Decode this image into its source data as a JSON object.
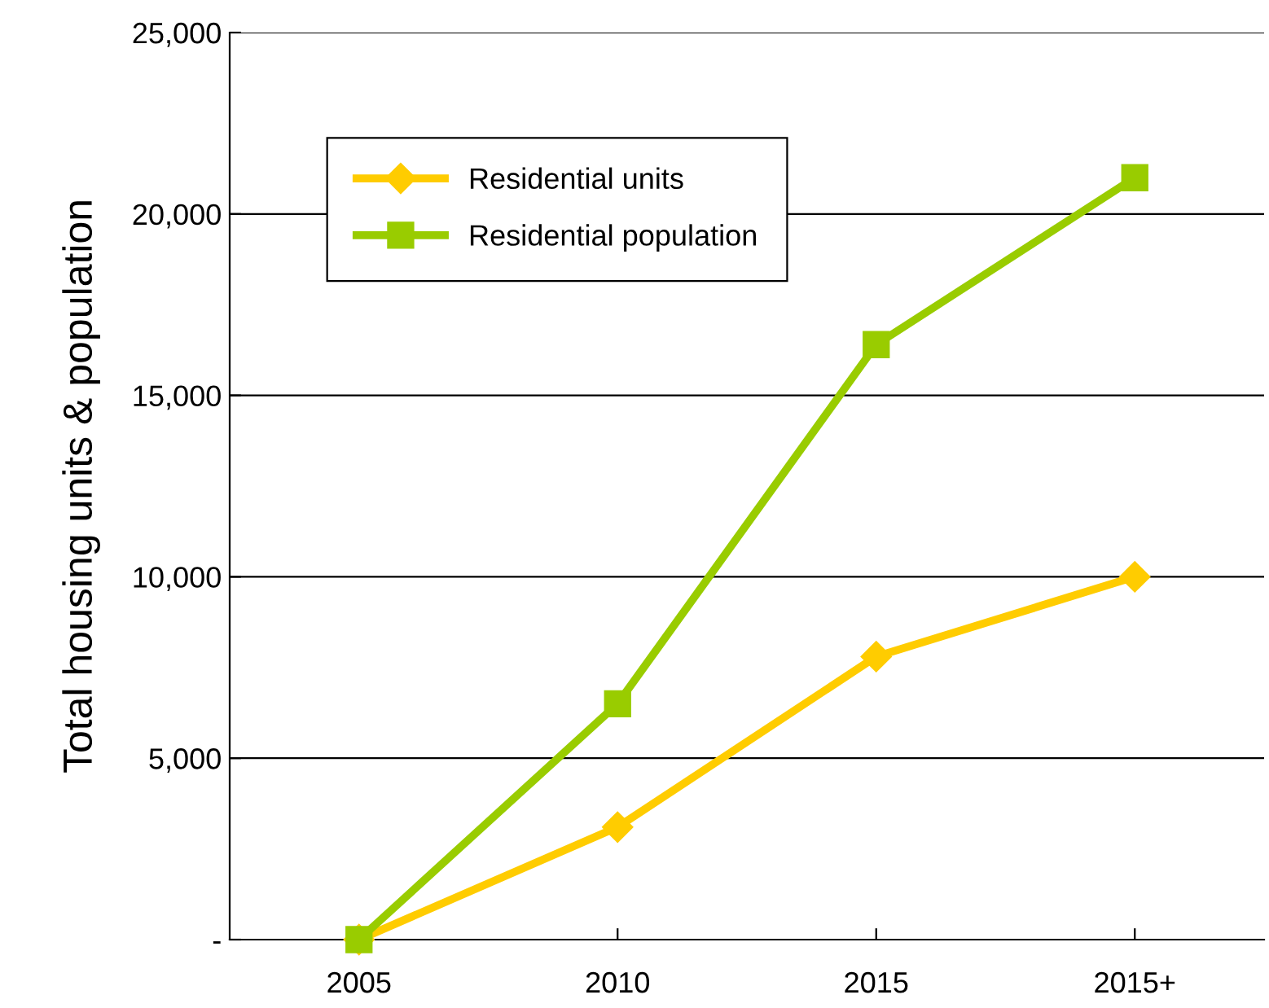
{
  "chart_data": {
    "type": "line",
    "ylabel": "Total housing units & population",
    "categories": [
      "2005",
      "2010",
      "2015",
      "2015+"
    ],
    "series": [
      {
        "name": "Residential units",
        "color": "#ffcc00",
        "values": [
          0,
          3100,
          7800,
          10000
        ],
        "marker": "diamond"
      },
      {
        "name": "Residential population",
        "color": "#99cc00",
        "values": [
          0,
          6500,
          16400,
          21000
        ],
        "marker": "square"
      }
    ],
    "ylim": [
      0,
      25000
    ],
    "yticks": [
      {
        "value": 0,
        "label": "-"
      },
      {
        "value": 5000,
        "label": "5,000"
      },
      {
        "value": 10000,
        "label": "10,000"
      },
      {
        "value": 15000,
        "label": "15,000"
      },
      {
        "value": 20000,
        "label": "20,000"
      },
      {
        "value": 25000,
        "label": "25,000"
      }
    ],
    "grid": "y",
    "legend": "top left",
    "line_style": "solid"
  }
}
